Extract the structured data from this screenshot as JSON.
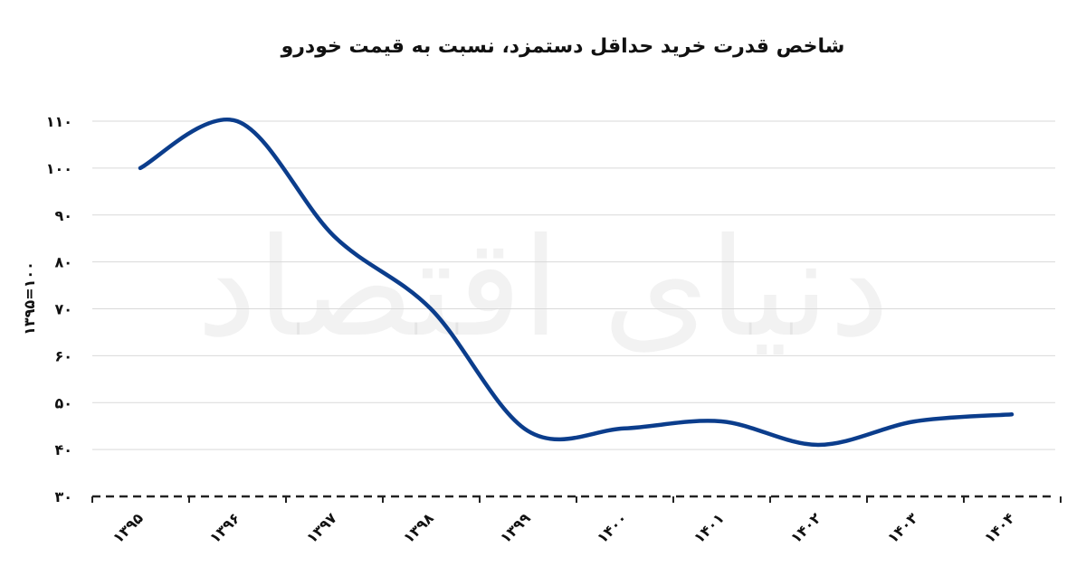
{
  "chart_data": {
    "type": "line",
    "title": "شاخص قدرت خرید حداقل دستمزد، نسبت به قیمت خودرو",
    "xlabel": "",
    "ylabel": "۱۳۹۵=۱۰۰",
    "watermark": "دنیای اقتصاد",
    "categories": [
      "۱۳۹۵",
      "۱۳۹۶",
      "۱۳۹۷",
      "۱۳۹۸",
      "۱۳۹۹",
      "۱۴۰۰",
      "۱۴۰۱",
      "۱۴۰۲",
      "۱۴۰۳",
      "۱۴۰۴"
    ],
    "series": [
      {
        "values": [
          100,
          110,
          85.5,
          70,
          44,
          44.5,
          46,
          41,
          46,
          47.5
        ],
        "color": "#0b3d8c"
      }
    ],
    "ylim": [
      30,
      110
    ],
    "yticks": [
      30,
      40,
      50,
      60,
      70,
      80,
      90,
      100,
      110
    ],
    "ytick_labels": [
      "۳۰",
      "۴۰",
      "۵۰",
      "۶۰",
      "۷۰",
      "۸۰",
      "۹۰",
      "۱۰۰",
      "۱۱۰"
    ],
    "grid": true,
    "legend": "none",
    "baseline_style": "dashed"
  }
}
